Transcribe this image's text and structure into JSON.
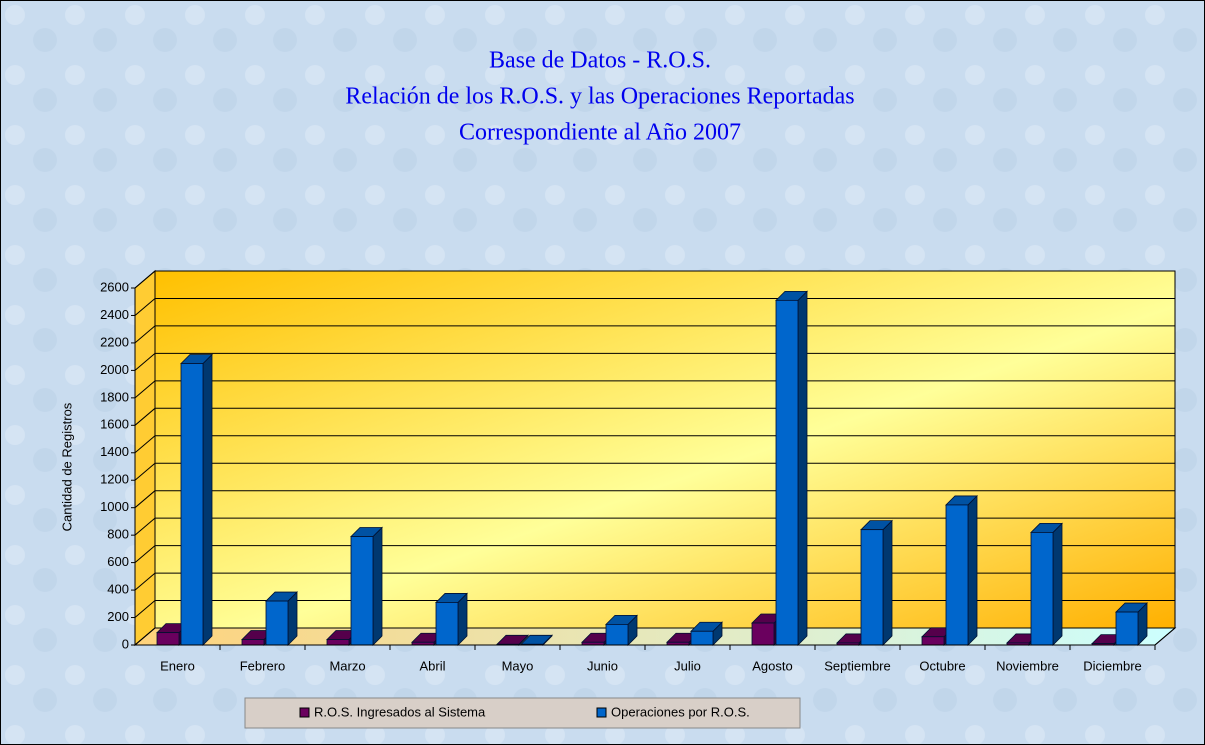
{
  "chart_data": {
    "type": "bar3d",
    "title": [
      "Base de Datos - R.O.S.",
      "Relación de los R.O.S. y las Operaciones Reportadas",
      "Correspondiente al Año 2007"
    ],
    "y_label": "Cantidad de Registros",
    "categories": [
      "Enero",
      "Febrero",
      "Marzo",
      "Abril",
      "Mayo",
      "Junio",
      "Julio",
      "Agosto",
      "Septiembre",
      "Octubre",
      "Noviembre",
      "Diciembre"
    ],
    "series": [
      {
        "name": "R.O.S. Ingresados al Sistema",
        "color": "#6a005e",
        "values": [
          90,
          40,
          40,
          20,
          5,
          20,
          20,
          160,
          15,
          60,
          15,
          10
        ]
      },
      {
        "name": "Operaciones por R.O.S.",
        "color": "#0066cc",
        "values": [
          2050,
          320,
          790,
          310,
          5,
          150,
          100,
          2510,
          840,
          1020,
          820,
          240
        ]
      }
    ],
    "ylim": [
      0,
      2600
    ],
    "yticks": [
      0,
      200,
      400,
      600,
      800,
      1000,
      1200,
      1400,
      1600,
      1800,
      2000,
      2200,
      2400,
      2600
    ],
    "grid": true,
    "legend": "bottom"
  }
}
